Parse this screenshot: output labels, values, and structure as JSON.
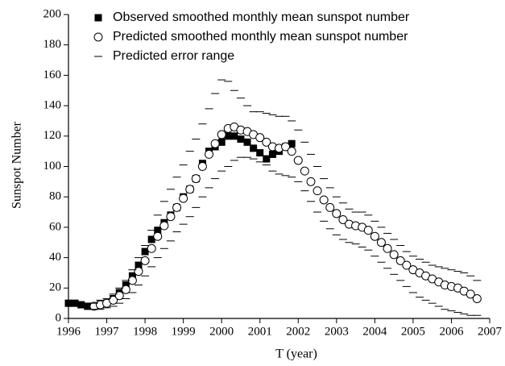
{
  "chart_data": {
    "type": "scatter",
    "x_label": "T (year)",
    "y_label": "Sunspot Number",
    "xlim": [
      1996,
      2007
    ],
    "xticks": [
      1996,
      1997,
      1998,
      1999,
      2000,
      2001,
      2002,
      2003,
      2004,
      2005,
      2006,
      2007
    ],
    "ylim": [
      0,
      200
    ],
    "yticks": [
      0,
      20,
      40,
      60,
      80,
      100,
      120,
      140,
      160,
      180,
      200
    ],
    "series": [
      {
        "name": "Observed smoothed monthly mean sunspot number",
        "marker": "square",
        "color": "#000000",
        "x": [
          1996.0,
          1996.17,
          1996.33,
          1996.5,
          1996.67,
          1996.83,
          1997.0,
          1997.17,
          1997.33,
          1997.5,
          1997.67,
          1997.83,
          1998.0,
          1998.17,
          1998.33,
          1998.5,
          1998.67,
          1998.83,
          1999.0,
          1999.17,
          1999.33,
          1999.5,
          1999.67,
          1999.83,
          2000.0,
          2000.17,
          2000.33,
          2000.5,
          2000.67,
          2000.83,
          2001.0,
          2001.17,
          2001.33,
          2001.5,
          2001.67,
          2001.83
        ],
        "values": [
          10,
          10,
          9,
          8,
          8,
          9,
          10,
          13,
          17,
          22,
          28,
          35,
          44,
          52,
          58,
          63,
          68,
          73,
          80,
          85,
          92,
          102,
          110,
          113,
          116,
          120,
          120,
          118,
          116,
          112,
          109,
          105,
          108,
          110,
          113,
          115
        ]
      },
      {
        "name": "Predicted smoothed monthly mean sunspot number",
        "marker": "circle",
        "color": "#000000",
        "x": [
          1996.67,
          1996.83,
          1997.0,
          1997.17,
          1997.33,
          1997.5,
          1997.67,
          1997.83,
          1998.0,
          1998.17,
          1998.33,
          1998.5,
          1998.67,
          1998.83,
          1999.0,
          1999.17,
          1999.33,
          1999.5,
          1999.67,
          1999.83,
          2000.0,
          2000.17,
          2000.33,
          2000.5,
          2000.67,
          2000.83,
          2001.0,
          2001.17,
          2001.33,
          2001.5,
          2001.67,
          2001.83,
          2002.0,
          2002.17,
          2002.33,
          2002.5,
          2002.67,
          2002.83,
          2003.0,
          2003.17,
          2003.33,
          2003.5,
          2003.67,
          2003.83,
          2004.0,
          2004.17,
          2004.33,
          2004.5,
          2004.67,
          2004.83,
          2005.0,
          2005.17,
          2005.33,
          2005.5,
          2005.67,
          2005.83,
          2006.0,
          2006.17,
          2006.33,
          2006.5,
          2006.67
        ],
        "values": [
          8,
          9,
          10,
          12,
          15,
          19,
          25,
          31,
          38,
          46,
          54,
          61,
          67,
          73,
          79,
          85,
          92,
          100,
          108,
          115,
          121,
          125,
          126,
          124,
          123,
          121,
          119,
          116,
          113,
          112,
          113,
          110,
          104,
          97,
          90,
          84,
          78,
          73,
          69,
          65,
          62,
          61,
          60,
          58,
          54,
          50,
          46,
          42,
          38,
          35,
          32,
          30,
          28,
          26,
          24,
          22,
          21,
          20,
          18,
          16,
          13
        ]
      },
      {
        "name": "Predicted error range",
        "marker": "dash",
        "color": "#000000",
        "x": [
          1996.67,
          1996.83,
          1997.0,
          1997.17,
          1997.33,
          1997.5,
          1997.67,
          1997.83,
          1998.0,
          1998.17,
          1998.33,
          1998.5,
          1998.67,
          1998.83,
          1999.0,
          1999.17,
          1999.33,
          1999.5,
          1999.67,
          1999.83,
          2000.0,
          2000.17,
          2000.33,
          2000.5,
          2000.67,
          2000.83,
          2001.0,
          2001.17,
          2001.33,
          2001.5,
          2001.67,
          2001.83,
          2002.0,
          2002.17,
          2002.33,
          2002.5,
          2002.67,
          2002.83,
          2003.0,
          2003.17,
          2003.33,
          2003.5,
          2003.67,
          2003.83,
          2004.0,
          2004.17,
          2004.33,
          2004.5,
          2004.67,
          2004.83,
          2005.0,
          2005.17,
          2005.33,
          2005.5,
          2005.67,
          2005.83,
          2006.0,
          2006.17,
          2006.33,
          2006.5,
          2006.67
        ],
        "upper": [
          10,
          12,
          13,
          16,
          20,
          25,
          32,
          40,
          48,
          58,
          68,
          77,
          85,
          93,
          101,
          110,
          118,
          128,
          138,
          148,
          157,
          156,
          150,
          145,
          140,
          136,
          136,
          135,
          134,
          133,
          133,
          130,
          124,
          116,
          108,
          100,
          92,
          86,
          80,
          76,
          72,
          70,
          70,
          68,
          64,
          60,
          56,
          52,
          48,
          44,
          41,
          39,
          37,
          35,
          34,
          33,
          32,
          31,
          30,
          28,
          25
        ],
        "lower": [
          6,
          6,
          7,
          8,
          10,
          13,
          17,
          22,
          28,
          34,
          40,
          46,
          51,
          57,
          62,
          67,
          73,
          80,
          86,
          92,
          97,
          100,
          104,
          106,
          106,
          105,
          103,
          101,
          97,
          95,
          94,
          93,
          90,
          84,
          77,
          70,
          64,
          59,
          55,
          52,
          50,
          49,
          47,
          45,
          41,
          37,
          33,
          29,
          25,
          21,
          17,
          14,
          12,
          10,
          8,
          6,
          5,
          4,
          3,
          2,
          2
        ]
      }
    ]
  }
}
